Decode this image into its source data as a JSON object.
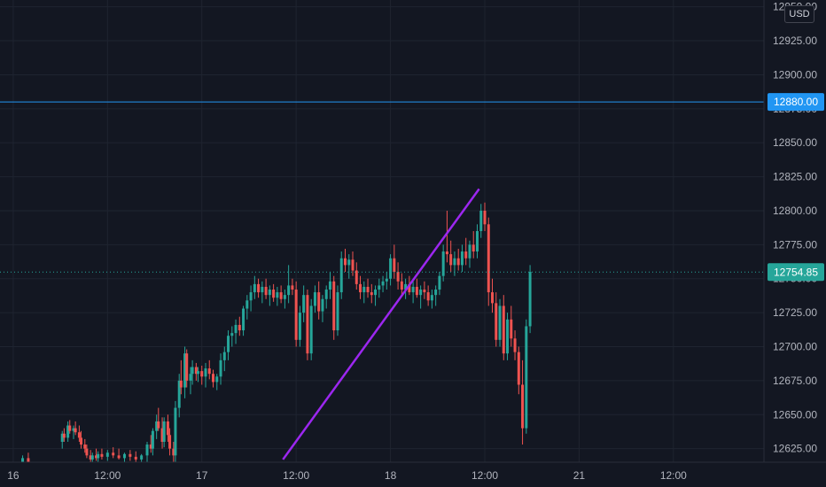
{
  "currency_label": "USD",
  "chart_data": {
    "type": "candlestick",
    "title": "",
    "xlabel": "",
    "ylabel": "",
    "ylim": [
      12615,
      12955
    ],
    "y_ticks": [
      12625,
      12650,
      12675,
      12700,
      12725,
      12750,
      12775,
      12800,
      12825,
      12850,
      12875,
      12900,
      12925,
      12950
    ],
    "y_tick_labels": [
      "12625.00",
      "12650.00",
      "12675.00",
      "12700.00",
      "12725.00",
      "12750.00",
      "12775.00",
      "12800.00",
      "12825.00",
      "12850.00",
      "12875.00",
      "12900.00",
      "12925.00",
      "12950.00"
    ],
    "x_ticks": [
      "16",
      "12:00",
      "17",
      "12:00",
      "18",
      "12:00",
      "21",
      "12:00"
    ],
    "x_tick_pos": [
      0,
      0.5,
      1,
      1.5,
      2,
      2.5,
      3,
      3.5
    ],
    "xlim": [
      -0.07,
      3.98
    ],
    "grid": true,
    "horizontal_line": {
      "value": 12880.0,
      "label": "12880.00",
      "color": "#2196f3"
    },
    "last_price": {
      "value": 12754.85,
      "label": "12754.85",
      "color": "#26a69a"
    },
    "trendline": {
      "from": [
        1.43,
        12617
      ],
      "to": [
        2.47,
        12816
      ],
      "color": "#9c27f0"
    },
    "up_color": "#26a69a",
    "down_color": "#ef5350",
    "ohlc": [
      [
        0.05,
        12615,
        12620,
        12610,
        12618
      ],
      [
        0.08,
        12618,
        12622,
        12612,
        12614
      ],
      [
        0.26,
        12630,
        12638,
        12625,
        12636
      ],
      [
        0.27,
        12636,
        12640,
        12630,
        12633
      ],
      [
        0.29,
        12633,
        12645,
        12630,
        12642
      ],
      [
        0.3,
        12642,
        12646,
        12636,
        12638
      ],
      [
        0.32,
        12638,
        12642,
        12632,
        12640
      ],
      [
        0.33,
        12640,
        12645,
        12635,
        12637
      ],
      [
        0.35,
        12637,
        12642,
        12630,
        12633
      ],
      [
        0.36,
        12633,
        12638,
        12625,
        12628
      ],
      [
        0.38,
        12628,
        12632,
        12622,
        12625
      ],
      [
        0.39,
        12625,
        12628,
        12618,
        12620
      ],
      [
        0.41,
        12620,
        12624,
        12615,
        12617
      ],
      [
        0.42,
        12617,
        12622,
        12614,
        12620
      ],
      [
        0.44,
        12620,
        12625,
        12616,
        12618
      ],
      [
        0.45,
        12618,
        12623,
        12615,
        12621
      ],
      [
        0.47,
        12621,
        12625,
        12617,
        12619
      ],
      [
        0.5,
        12619,
        12624,
        12616,
        12622
      ],
      [
        0.53,
        12622,
        12626,
        12618,
        12620
      ],
      [
        0.56,
        12620,
        12625,
        12617,
        12618
      ],
      [
        0.59,
        12618,
        12622,
        12615,
        12621
      ],
      [
        0.62,
        12621,
        12624,
        12616,
        12619
      ],
      [
        0.65,
        12619,
        12623,
        12615,
        12617
      ],
      [
        0.68,
        12617,
        12621,
        12614,
        12620
      ],
      [
        0.71,
        12620,
        12630,
        12615,
        12628
      ],
      [
        0.73,
        12628,
        12635,
        12622,
        12625
      ],
      [
        0.74,
        12625,
        12640,
        12620,
        12638
      ],
      [
        0.76,
        12638,
        12650,
        12632,
        12645
      ],
      [
        0.77,
        12645,
        12655,
        12638,
        12640
      ],
      [
        0.79,
        12640,
        12648,
        12625,
        12630
      ],
      [
        0.8,
        12630,
        12648,
        12626,
        12645
      ],
      [
        0.82,
        12645,
        12650,
        12630,
        12635
      ],
      [
        0.83,
        12635,
        12640,
        12620,
        12625
      ],
      [
        0.85,
        12625,
        12630,
        12615,
        12620
      ],
      [
        0.86,
        12620,
        12660,
        12615,
        12655
      ],
      [
        0.88,
        12655,
        12680,
        12648,
        12675
      ],
      [
        0.89,
        12675,
        12690,
        12665,
        12670
      ],
      [
        0.91,
        12670,
        12700,
        12662,
        12695
      ],
      [
        0.92,
        12695,
        12698,
        12670,
        12675
      ],
      [
        0.94,
        12675,
        12685,
        12665,
        12680
      ],
      [
        0.95,
        12680,
        12690,
        12672,
        12685
      ],
      [
        0.97,
        12685,
        12688,
        12675,
        12680
      ],
      [
        0.98,
        12680,
        12685,
        12674,
        12682
      ],
      [
        1.0,
        12682,
        12686,
        12672,
        12678
      ],
      [
        1.02,
        12678,
        12688,
        12670,
        12684
      ],
      [
        1.04,
        12684,
        12690,
        12676,
        12680
      ],
      [
        1.06,
        12680,
        12683,
        12670,
        12674
      ],
      [
        1.08,
        12674,
        12680,
        12668,
        12678
      ],
      [
        1.1,
        12678,
        12695,
        12672,
        12690
      ],
      [
        1.12,
        12690,
        12700,
        12682,
        12696
      ],
      [
        1.14,
        12696,
        12712,
        12690,
        12708
      ],
      [
        1.16,
        12708,
        12715,
        12700,
        12710
      ],
      [
        1.18,
        12710,
        12720,
        12702,
        12716
      ],
      [
        1.2,
        12716,
        12722,
        12708,
        12712
      ],
      [
        1.22,
        12712,
        12730,
        12708,
        12728
      ],
      [
        1.24,
        12728,
        12738,
        12720,
        12734
      ],
      [
        1.26,
        12734,
        12745,
        12726,
        12740
      ],
      [
        1.28,
        12740,
        12752,
        12735,
        12746
      ],
      [
        1.3,
        12746,
        12750,
        12736,
        12740
      ],
      [
        1.32,
        12740,
        12748,
        12732,
        12744
      ],
      [
        1.34,
        12744,
        12750,
        12735,
        12738
      ],
      [
        1.36,
        12738,
        12745,
        12730,
        12742
      ],
      [
        1.38,
        12742,
        12746,
        12733,
        12736
      ],
      [
        1.4,
        12736,
        12744,
        12730,
        12740
      ],
      [
        1.42,
        12740,
        12745,
        12732,
        12735
      ],
      [
        1.44,
        12735,
        12742,
        12728,
        12738
      ],
      [
        1.46,
        12738,
        12760,
        12732,
        12745
      ],
      [
        1.48,
        12745,
        12750,
        12738,
        12742
      ],
      [
        1.5,
        12742,
        12748,
        12700,
        12705
      ],
      [
        1.52,
        12705,
        12730,
        12700,
        12725
      ],
      [
        1.54,
        12725,
        12745,
        12718,
        12738
      ],
      [
        1.56,
        12738,
        12742,
        12690,
        12695
      ],
      [
        1.58,
        12695,
        12735,
        12690,
        12730
      ],
      [
        1.6,
        12730,
        12745,
        12725,
        12740
      ],
      [
        1.62,
        12740,
        12748,
        12720,
        12726
      ],
      [
        1.64,
        12726,
        12738,
        12718,
        12735
      ],
      [
        1.66,
        12735,
        12745,
        12728,
        12742
      ],
      [
        1.68,
        12742,
        12755,
        12735,
        12748
      ],
      [
        1.7,
        12748,
        12752,
        12705,
        12712
      ],
      [
        1.72,
        12712,
        12745,
        12708,
        12740
      ],
      [
        1.74,
        12740,
        12770,
        12735,
        12765
      ],
      [
        1.76,
        12765,
        12772,
        12755,
        12760
      ],
      [
        1.78,
        12760,
        12768,
        12750,
        12764
      ],
      [
        1.8,
        12764,
        12770,
        12752,
        12756
      ],
      [
        1.82,
        12756,
        12762,
        12742,
        12746
      ],
      [
        1.84,
        12746,
        12752,
        12735,
        12740
      ],
      [
        1.86,
        12740,
        12748,
        12732,
        12744
      ],
      [
        1.88,
        12744,
        12750,
        12736,
        12740
      ],
      [
        1.9,
        12740,
        12746,
        12732,
        12738
      ],
      [
        1.92,
        12738,
        12745,
        12730,
        12742
      ],
      [
        1.94,
        12742,
        12750,
        12736,
        12745
      ],
      [
        1.96,
        12745,
        12752,
        12740,
        12748
      ],
      [
        1.98,
        12748,
        12755,
        12742,
        12750
      ],
      [
        2.0,
        12750,
        12768,
        12745,
        12765
      ],
      [
        2.02,
        12765,
        12775,
        12750,
        12755
      ],
      [
        2.04,
        12755,
        12762,
        12742,
        12748
      ],
      [
        2.06,
        12748,
        12754,
        12738,
        12742
      ],
      [
        2.08,
        12742,
        12750,
        12735,
        12746
      ],
      [
        2.1,
        12746,
        12752,
        12738,
        12740
      ],
      [
        2.12,
        12740,
        12748,
        12732,
        12744
      ],
      [
        2.14,
        12744,
        12750,
        12736,
        12738
      ],
      [
        2.16,
        12738,
        12745,
        12728,
        12742
      ],
      [
        2.18,
        12742,
        12748,
        12735,
        12740
      ],
      [
        2.2,
        12740,
        12745,
        12730,
        12734
      ],
      [
        2.22,
        12734,
        12742,
        12728,
        12738
      ],
      [
        2.24,
        12738,
        12745,
        12730,
        12742
      ],
      [
        2.26,
        12742,
        12755,
        12738,
        12752
      ],
      [
        2.28,
        12752,
        12775,
        12748,
        12770
      ],
      [
        2.3,
        12770,
        12800,
        12762,
        12768
      ],
      [
        2.32,
        12768,
        12778,
        12755,
        12760
      ],
      [
        2.34,
        12760,
        12770,
        12752,
        12765
      ],
      [
        2.36,
        12765,
        12772,
        12756,
        12760
      ],
      [
        2.38,
        12760,
        12775,
        12755,
        12770
      ],
      [
        2.4,
        12770,
        12780,
        12760,
        12765
      ],
      [
        2.42,
        12765,
        12778,
        12758,
        12775
      ],
      [
        2.44,
        12775,
        12785,
        12765,
        12770
      ],
      [
        2.46,
        12770,
        12790,
        12765,
        12785
      ],
      [
        2.48,
        12785,
        12805,
        12780,
        12800
      ],
      [
        2.5,
        12800,
        12806,
        12785,
        12790
      ],
      [
        2.52,
        12790,
        12795,
        12730,
        12740
      ],
      [
        2.54,
        12740,
        12750,
        12725,
        12732
      ],
      [
        2.56,
        12732,
        12740,
        12700,
        12705
      ],
      [
        2.58,
        12705,
        12735,
        12700,
        12730
      ],
      [
        2.6,
        12730,
        12738,
        12690,
        12695
      ],
      [
        2.62,
        12695,
        12725,
        12690,
        12720
      ],
      [
        2.64,
        12720,
        12730,
        12700,
        12706
      ],
      [
        2.66,
        12706,
        12712,
        12690,
        12696
      ],
      [
        2.68,
        12696,
        12700,
        12665,
        12672
      ],
      [
        2.7,
        12672,
        12690,
        12628,
        12640
      ],
      [
        2.72,
        12640,
        12720,
        12636,
        12715
      ],
      [
        2.74,
        12715,
        12760,
        12710,
        12755
      ]
    ]
  }
}
